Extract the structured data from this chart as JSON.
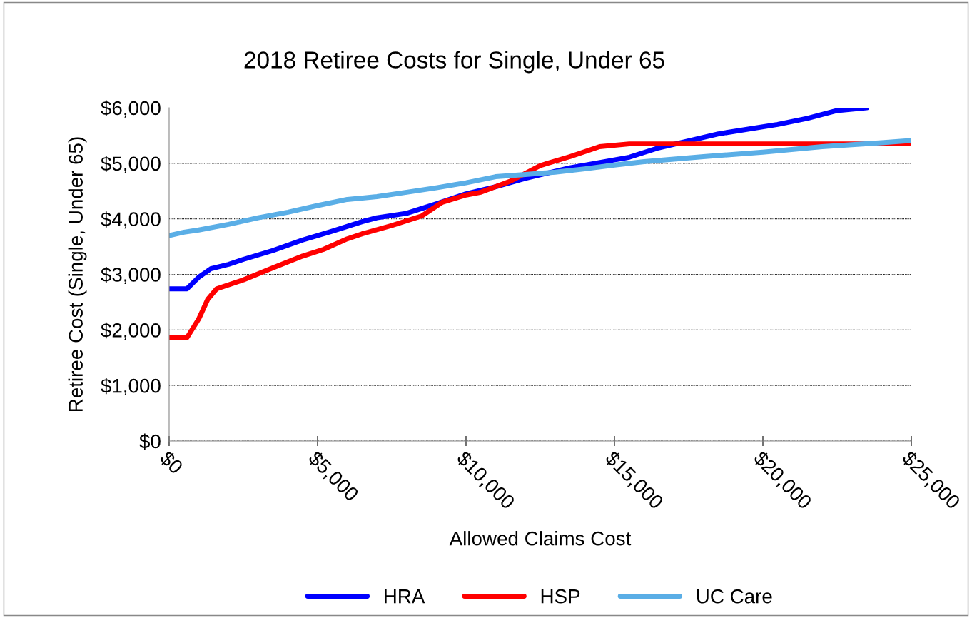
{
  "chart_data": {
    "type": "line",
    "title": "2018 Retiree Costs for Single, Under 65",
    "xlabel": "Allowed Claims Cost",
    "ylabel": "Retiree Cost (Single, Under 65)",
    "xlim": [
      0,
      25000
    ],
    "xticks": [
      {
        "value": 0,
        "label": "$0"
      },
      {
        "value": 5000,
        "label": "$5,000"
      },
      {
        "value": 10000,
        "label": "$10,000"
      },
      {
        "value": 15000,
        "label": "$15,000"
      },
      {
        "value": 20000,
        "label": "$20,000"
      },
      {
        "value": 25000,
        "label": "$25,000"
      }
    ],
    "ylim": [
      0,
      6000
    ],
    "yticks": [
      {
        "value": 0,
        "label": "$0"
      },
      {
        "value": 1000,
        "label": "$1,000"
      },
      {
        "value": 2000,
        "label": "$2,000"
      },
      {
        "value": 3000,
        "label": "$3,000"
      },
      {
        "value": 4000,
        "label": "$4,000"
      },
      {
        "value": 5000,
        "label": "$5,000"
      },
      {
        "value": 6000,
        "label": "$6,000"
      }
    ],
    "grid": "y",
    "legend": "bottom",
    "marker": "none",
    "line_style": "solid",
    "series": [
      {
        "name": "HRA",
        "color": "#0000ff",
        "x": [
          0,
          600,
          1000,
          1400,
          2000,
          2500,
          3500,
          4500,
          5500,
          6500,
          7000,
          8000,
          9000,
          10000,
          11000,
          12000,
          13500,
          15500,
          16500,
          18500,
          20500,
          21500,
          22500,
          23500
        ],
        "values": [
          2740,
          2740,
          2950,
          3100,
          3180,
          3270,
          3430,
          3620,
          3780,
          3950,
          4020,
          4100,
          4270,
          4450,
          4580,
          4730,
          4920,
          5110,
          5280,
          5530,
          5700,
          5810,
          5950,
          6000
        ]
      },
      {
        "name": "HSP",
        "color": "#ff0000",
        "x": [
          0,
          600,
          1000,
          1300,
          1600,
          2500,
          3500,
          4500,
          5200,
          6000,
          6500,
          7500,
          8500,
          9200,
          10000,
          10500,
          11500,
          12500,
          13500,
          14500,
          15500,
          25000
        ],
        "values": [
          1860,
          1860,
          2200,
          2550,
          2740,
          2900,
          3120,
          3330,
          3450,
          3640,
          3730,
          3880,
          4050,
          4300,
          4430,
          4480,
          4680,
          4960,
          5120,
          5300,
          5350,
          5350
        ]
      },
      {
        "name": "UC Care",
        "color": "#5aaee6",
        "x": [
          0,
          500,
          1000,
          2000,
          3000,
          4000,
          5000,
          6000,
          7000,
          8000,
          9000,
          10000,
          11000,
          12000,
          13000,
          14000,
          15000,
          16000,
          18000,
          20000,
          22000,
          24000,
          25000
        ],
        "values": [
          3700,
          3760,
          3800,
          3900,
          4020,
          4120,
          4240,
          4350,
          4400,
          4480,
          4560,
          4650,
          4760,
          4800,
          4840,
          4900,
          4970,
          5030,
          5120,
          5200,
          5300,
          5370,
          5410
        ]
      }
    ]
  }
}
